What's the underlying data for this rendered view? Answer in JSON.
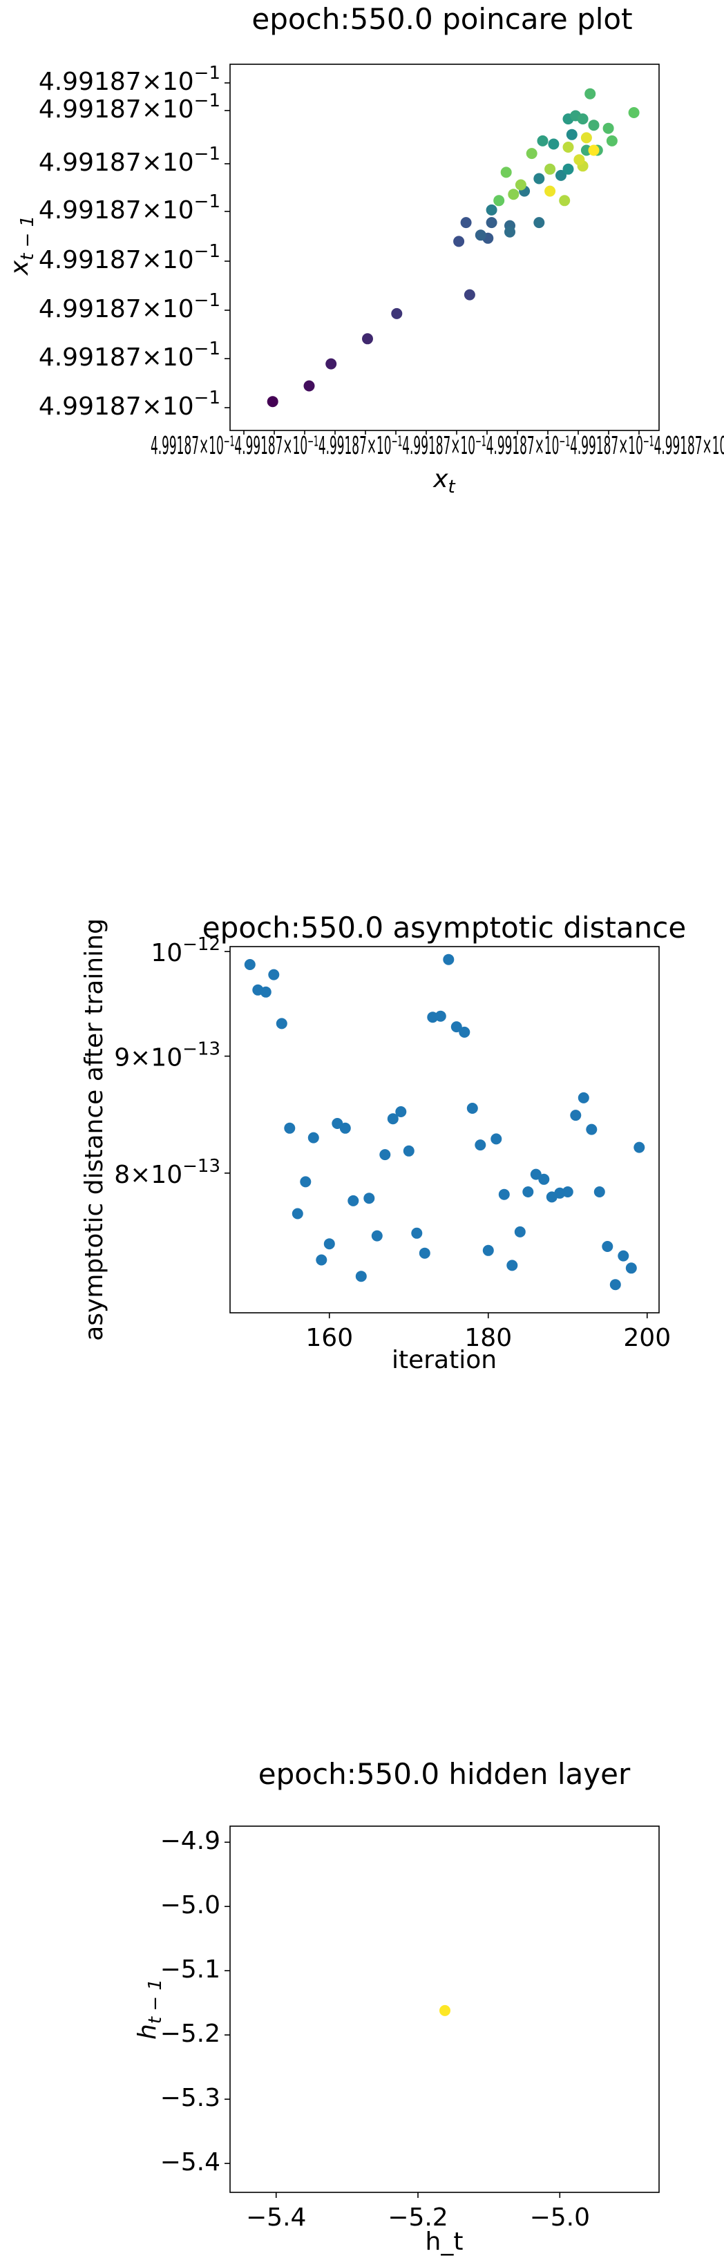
{
  "chart_data": [
    {
      "type": "scatter",
      "title": "epoch:550.0 poincare plot",
      "xlabel": "x_t",
      "ylabel": "x_{t-1}",
      "y_tick_labels": [
        "4.99187 × 10^-1",
        "4.99187 × 10^-1",
        "4.99187 × 10^-1",
        "4.99187 × 10^-1",
        "4.99187 × 10^-1",
        "4.99187 × 10^-1",
        "4.99187 × 10^-1",
        "4.99187 × 10^-1"
      ],
      "x_tick_text": "4.99187 × 10^-1 (overlapping tick labels)",
      "x_scale": "log",
      "y_scale": "log",
      "colormap": "viridis",
      "note_units": "axes show tiny offsets around 4.99187e-1; points given as normalized relative positions (0-1) within axis range",
      "points": [
        [
          0.06,
          0.02,
          0.0
        ],
        [
          0.16,
          0.07,
          0.04
        ],
        [
          0.22,
          0.14,
          0.08
        ],
        [
          0.32,
          0.22,
          0.12
        ],
        [
          0.4,
          0.3,
          0.16
        ],
        [
          0.6,
          0.36,
          0.2
        ],
        [
          0.57,
          0.53,
          0.24
        ],
        [
          0.59,
          0.59,
          0.26
        ],
        [
          0.65,
          0.54,
          0.28
        ],
        [
          0.66,
          0.59,
          0.3
        ],
        [
          0.63,
          0.55,
          0.32
        ],
        [
          0.71,
          0.58,
          0.34
        ],
        [
          0.71,
          0.56,
          0.36
        ],
        [
          0.79,
          0.59,
          0.38
        ],
        [
          0.75,
          0.69,
          0.4
        ],
        [
          0.66,
          0.63,
          0.42
        ],
        [
          0.79,
          0.73,
          0.44
        ],
        [
          0.85,
          0.74,
          0.46
        ],
        [
          0.88,
          0.87,
          0.48
        ],
        [
          0.87,
          0.76,
          0.5
        ],
        [
          0.83,
          0.84,
          0.52
        ],
        [
          0.87,
          0.92,
          0.54
        ],
        [
          0.8,
          0.85,
          0.56
        ],
        [
          0.89,
          0.93,
          0.58
        ],
        [
          0.91,
          0.92,
          0.6
        ],
        [
          0.92,
          0.82,
          0.62
        ],
        [
          0.94,
          0.9,
          0.64
        ],
        [
          0.95,
          0.82,
          0.66
        ],
        [
          0.93,
          1.0,
          0.68
        ],
        [
          0.98,
          0.89,
          0.7
        ],
        [
          0.99,
          0.85,
          0.72
        ],
        [
          1.05,
          0.94,
          0.74
        ],
        [
          0.68,
          0.66,
          0.76
        ],
        [
          0.7,
          0.75,
          0.78
        ],
        [
          0.77,
          0.81,
          0.8
        ],
        [
          0.72,
          0.68,
          0.82
        ],
        [
          0.74,
          0.71,
          0.84
        ],
        [
          0.82,
          0.76,
          0.86
        ],
        [
          0.86,
          0.66,
          0.88
        ],
        [
          0.87,
          0.83,
          0.9
        ],
        [
          0.91,
          0.77,
          0.92
        ],
        [
          0.9,
          0.79,
          0.94
        ],
        [
          0.92,
          0.86,
          0.96
        ],
        [
          0.82,
          0.69,
          0.98
        ],
        [
          0.94,
          0.82,
          1.0
        ]
      ]
    },
    {
      "type": "scatter",
      "title": "epoch:550.0 asymptotic distance",
      "xlabel": "iteration",
      "ylabel": "asymptotic distance after training",
      "y_scale": "log",
      "xlim": [
        147.5,
        201.5
      ],
      "ylim": [
        6.95e-13,
        1.005e-12
      ],
      "x_ticks": [
        160,
        180,
        200
      ],
      "x_tick_labels": [
        "160",
        "180",
        "200"
      ],
      "y_ticks": [
        1e-12,
        9e-13,
        8e-13
      ],
      "y_tick_labels": [
        "10^-12",
        "9 × 10^-13",
        "8 × 10^-13"
      ],
      "color": "#1f77b4",
      "x": [
        150,
        151,
        152,
        153,
        154,
        155,
        156,
        157,
        158,
        159,
        160,
        161,
        162,
        163,
        164,
        165,
        166,
        167,
        168,
        169,
        170,
        171,
        172,
        173,
        174,
        175,
        176,
        177,
        178,
        179,
        180,
        181,
        182,
        183,
        184,
        185,
        186,
        187,
        188,
        189,
        190,
        191,
        192,
        193,
        194,
        195,
        196,
        197,
        198,
        199
      ],
      "values": [
        9.87e-13,
        9.62e-13,
        9.6e-13,
        9.77e-13,
        9.3e-13,
        8.37e-13,
        7.68e-13,
        7.93e-13,
        8.29e-13,
        7.33e-13,
        7.45e-13,
        8.41e-13,
        8.37e-13,
        7.78e-13,
        7.21e-13,
        7.8e-13,
        7.51e-13,
        8.15e-13,
        8.45e-13,
        8.51e-13,
        8.18e-13,
        7.53e-13,
        7.38e-13,
        9.36e-13,
        9.37e-13,
        9.92e-13,
        9.27e-13,
        9.22e-13,
        8.54e-13,
        8.23e-13,
        7.4e-13,
        8.28e-13,
        7.83e-13,
        7.29e-13,
        7.54e-13,
        7.85e-13,
        7.99e-13,
        7.95e-13,
        7.81e-13,
        7.84e-13,
        7.85e-13,
        8.48e-13,
        8.63e-13,
        8.36e-13,
        7.85e-13,
        7.43e-13,
        7.15e-13,
        7.36e-13,
        7.27e-13,
        8.21e-13
      ]
    },
    {
      "type": "scatter",
      "title": "epoch:550.0 hidden layer",
      "xlabel": "h_t",
      "ylabel": "h_{t-1}",
      "xlim": [
        -5.465,
        -4.86
      ],
      "ylim": [
        -5.445,
        -4.875
      ],
      "x_ticks": [
        -5.4,
        -5.2,
        -5.0
      ],
      "x_tick_labels": [
        "−5.4",
        "−5.2",
        "−5.0"
      ],
      "y_ticks": [
        -4.9,
        -5.0,
        -5.1,
        -5.2,
        -5.3,
        -5.4
      ],
      "y_tick_labels": [
        "−4.9",
        "−5.0",
        "−5.1",
        "−5.2",
        "−5.3",
        "−5.4"
      ],
      "color": "#fde725",
      "x": [
        -5.162
      ],
      "values": [
        -5.162
      ]
    }
  ]
}
